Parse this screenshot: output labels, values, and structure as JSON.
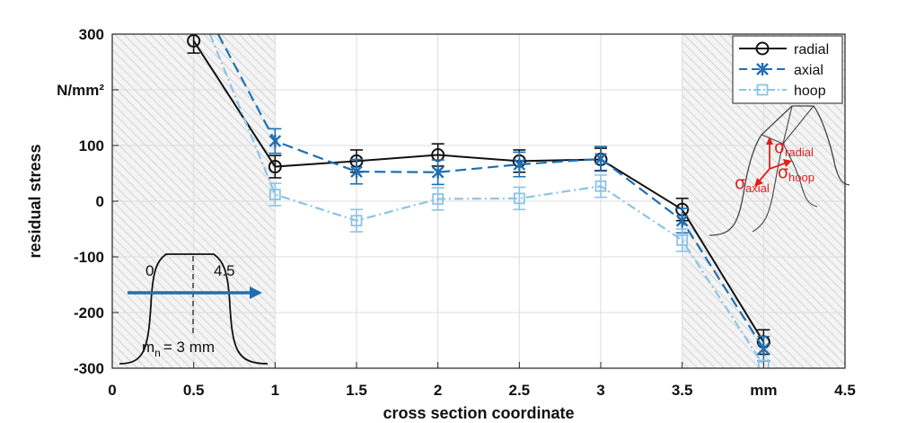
{
  "chart_data": {
    "type": "line",
    "xlabel": "cross section coordinate",
    "ylabel": "residual stress",
    "unit_y": "N/mm²",
    "unit_x": "mm",
    "xlim": [
      0,
      4.5
    ],
    "ylim": [
      -300,
      300
    ],
    "x_ticks": [
      "0",
      "0.5",
      "1",
      "1.5",
      "2",
      "2.5",
      "3",
      "3.5",
      "mm",
      "4.5"
    ],
    "y_ticks": [
      "300",
      "N/mm²",
      "100",
      "0",
      "-100",
      "-200",
      "-300"
    ],
    "grid": true,
    "legend_position": "top-right",
    "shaded_regions": [
      [
        0,
        1
      ],
      [
        3.5,
        4.5
      ]
    ],
    "series": [
      {
        "name": "radial",
        "color": "#111111",
        "style": "solid",
        "marker": "circle",
        "x": [
          0.5,
          1,
          1.5,
          2,
          2.5,
          3,
          3.5,
          4
        ],
        "y": [
          288,
          62,
          72,
          83,
          72,
          75,
          -15,
          -253
        ],
        "err": [
          22,
          20,
          20,
          20,
          20,
          20,
          20,
          22
        ]
      },
      {
        "name": "axial",
        "color": "#1f6fb2",
        "style": "dashed",
        "marker": "asterisk",
        "x": [
          0.65,
          1,
          1.5,
          2,
          2.5,
          3,
          3.5,
          4
        ],
        "y": [
          300,
          108,
          53,
          52,
          66,
          76,
          -35,
          -265
        ],
        "err": [
          0,
          22,
          22,
          22,
          22,
          22,
          22,
          22
        ]
      },
      {
        "name": "hoop",
        "color": "#8cc3e6",
        "style": "dashdot",
        "marker": "square",
        "x": [
          0.6,
          1,
          1.5,
          2,
          2.5,
          3,
          3.5,
          4
        ],
        "y": [
          300,
          12,
          -35,
          4,
          5,
          27,
          -70,
          -295
        ],
        "err": [
          0,
          20,
          20,
          20,
          20,
          20,
          20,
          0
        ]
      }
    ],
    "annotations": {
      "profile_start": "0",
      "profile_end": "4.5",
      "module_label": "= 3 mm",
      "module_symbol": "m",
      "module_sub": "n",
      "sigma": "σ",
      "sub_radial": "radial",
      "sub_axial": "axial",
      "sub_hoop": "hoop"
    }
  }
}
